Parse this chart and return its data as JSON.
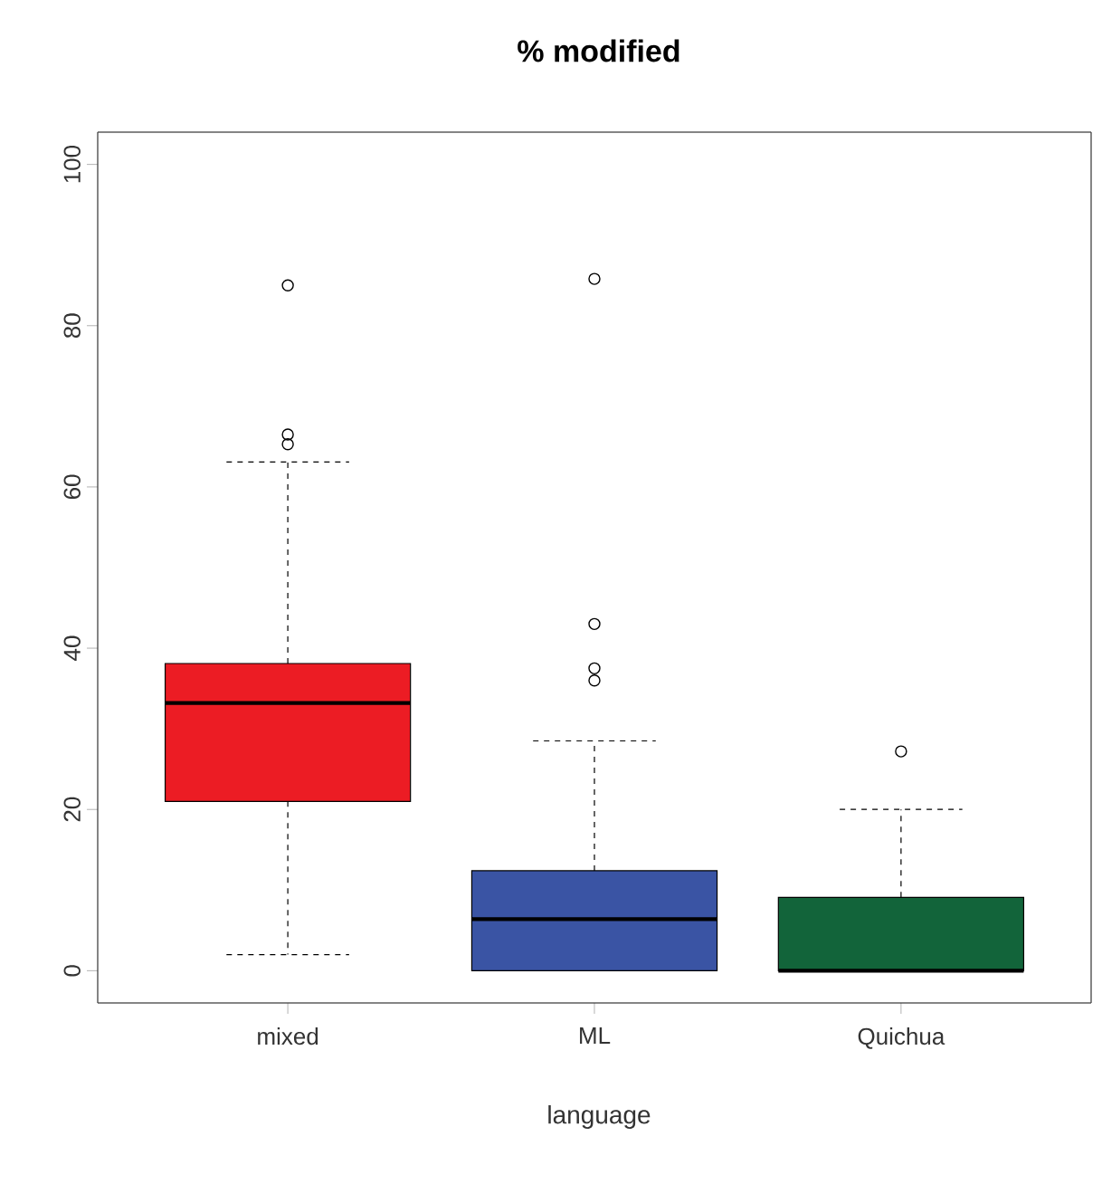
{
  "chart_data": {
    "type": "box",
    "title": "% modified",
    "xlabel": "language",
    "categories": [
      "mixed",
      "ML",
      "Quichua"
    ],
    "colors": [
      "#ec1c24",
      "#3a54a4",
      "#12643a"
    ],
    "boxes": [
      {
        "low": 2,
        "q1": 21,
        "median": 33.2,
        "q3": 38.1,
        "high": 63.1,
        "outliers": [
          85,
          66.5,
          65.3
        ]
      },
      {
        "low": 0,
        "q1": 0,
        "median": 6.4,
        "q3": 12.4,
        "high": 28.5,
        "outliers": [
          85.8,
          43,
          37.5,
          36
        ]
      },
      {
        "low": 0,
        "q1": 0,
        "median": 0,
        "q3": 9.1,
        "high": 20,
        "outliers": [
          27.2
        ]
      }
    ],
    "ylim": [
      -4,
      104
    ],
    "yticks": [
      0,
      20,
      40,
      60,
      80,
      100
    ]
  }
}
